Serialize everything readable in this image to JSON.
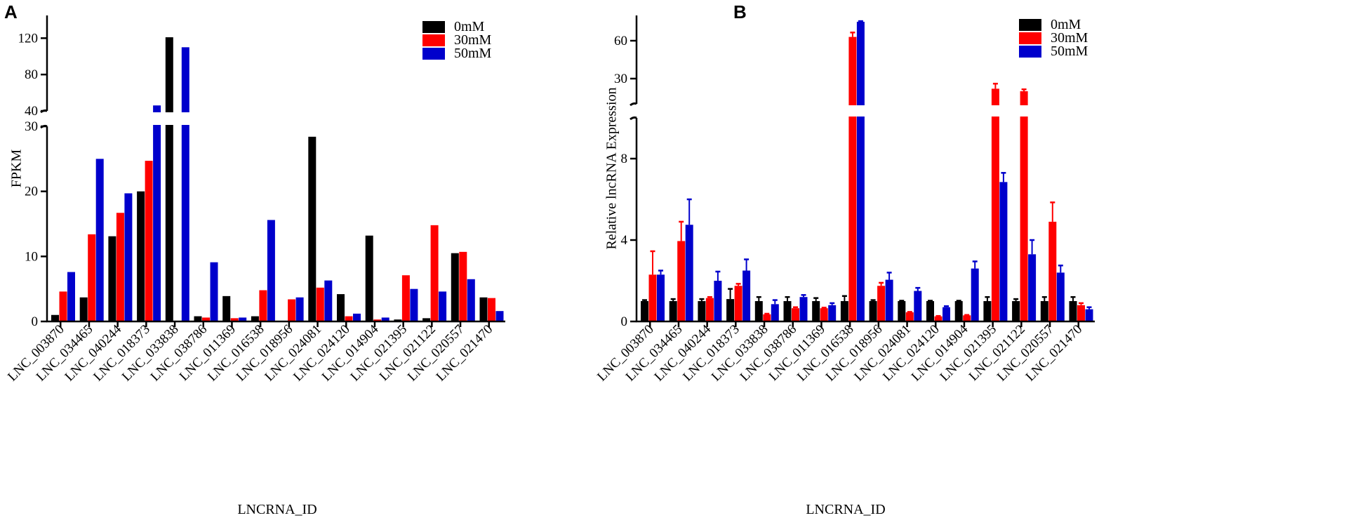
{
  "chart_data": [
    {
      "panel": "A",
      "type": "bar",
      "title": "",
      "xlabel": "LNCRNA_ID",
      "ylabel": "FPKM",
      "categories": [
        "LNC_003870",
        "LNC_034465",
        "LNC_040244",
        "LNC_018373",
        "LNC_033838",
        "LNC_038786",
        "LNC_011369",
        "LNC_016538",
        "LNC_018956",
        "LNC_024081",
        "LNC_024120",
        "LNC_014904",
        "LNC_021395",
        "LNC_021122",
        "LNC_020557",
        "LNC_021470"
      ],
      "series": [
        {
          "name": "0mM",
          "color": "#000000",
          "values": [
            1.0,
            3.7,
            13.1,
            20.0,
            121,
            0.8,
            3.9,
            0.8,
            0,
            28.4,
            4.2,
            13.2,
            0.3,
            0.5,
            10.5,
            3.7
          ]
        },
        {
          "name": "30mM",
          "color": "#ff0000",
          "values": [
            4.6,
            13.4,
            16.7,
            24.7,
            0,
            0.6,
            0.5,
            4.8,
            3.4,
            5.2,
            0.8,
            0.3,
            7.1,
            14.8,
            10.7,
            3.6
          ]
        },
        {
          "name": "50mM",
          "color": "#0000cc",
          "values": [
            7.6,
            25.0,
            19.7,
            46,
            110,
            9.1,
            0.6,
            15.6,
            3.7,
            6.3,
            1.2,
            0.6,
            5.0,
            4.6,
            6.5,
            1.6
          ]
        }
      ],
      "yaxis_segments": [
        {
          "range": [
            0,
            30
          ],
          "ticks": [
            0,
            10,
            20,
            30
          ]
        },
        {
          "range": [
            40,
            145
          ],
          "ticks": [
            40,
            80,
            120
          ]
        }
      ],
      "legend_position": "top-right"
    },
    {
      "panel": "B",
      "type": "bar",
      "title": "",
      "xlabel": "LNCRNA_ID",
      "ylabel": "Relative lncRNA Expression",
      "categories": [
        "LNC_003870",
        "LNC_034465",
        "LNC_040244",
        "LNC_018373",
        "LNC_033838",
        "LNC_038786",
        "LNC_011369",
        "LNC_016538",
        "LNC_018956",
        "LNC_024081",
        "LNC_024120",
        "LNC_014904",
        "LNC_021395",
        "LNC_021122",
        "LNC_020557",
        "LNC_021470"
      ],
      "series": [
        {
          "name": "0mM",
          "color": "#000000",
          "values": [
            1.0,
            1.0,
            1.0,
            1.1,
            1.0,
            1.0,
            1.0,
            1.0,
            1.0,
            1.0,
            1.0,
            1.0,
            1.0,
            1.0,
            1.0,
            1.0
          ],
          "errors": [
            0.05,
            0.1,
            0.1,
            0.5,
            0.2,
            0.2,
            0.15,
            0.25,
            0.05,
            0.02,
            0.02,
            0.02,
            0.2,
            0.1,
            0.2,
            0.2
          ]
        },
        {
          "name": "30mM",
          "color": "#ff0000",
          "values": [
            2.3,
            3.95,
            1.15,
            1.75,
            0.35,
            0.65,
            0.65,
            63,
            1.75,
            0.45,
            0.25,
            0.3,
            22,
            20,
            4.9,
            0.8
          ],
          "errors": [
            1.15,
            0.95,
            0.05,
            0.1,
            0.03,
            0.05,
            0.03,
            3.5,
            0.15,
            0.02,
            0.02,
            0.02,
            4,
            1.5,
            0.95,
            0.1
          ]
        },
        {
          "name": "50mM",
          "color": "#0000cc",
          "values": [
            2.3,
            4.75,
            2.0,
            2.5,
            0.85,
            1.2,
            0.8,
            75,
            2.05,
            1.5,
            0.7,
            2.6,
            6.85,
            3.3,
            2.4,
            0.6
          ],
          "errors": [
            0.2,
            1.25,
            0.45,
            0.55,
            0.2,
            0.1,
            0.1,
            0.5,
            0.35,
            0.15,
            0.05,
            0.35,
            0.45,
            0.7,
            0.35,
            0.1
          ]
        }
      ],
      "yaxis_segments": [
        {
          "range": [
            0,
            10
          ],
          "ticks": [
            0,
            4,
            8
          ]
        },
        {
          "range": [
            10,
            80
          ],
          "ticks": [
            30,
            60
          ]
        }
      ],
      "legend_position": "top-right"
    }
  ]
}
